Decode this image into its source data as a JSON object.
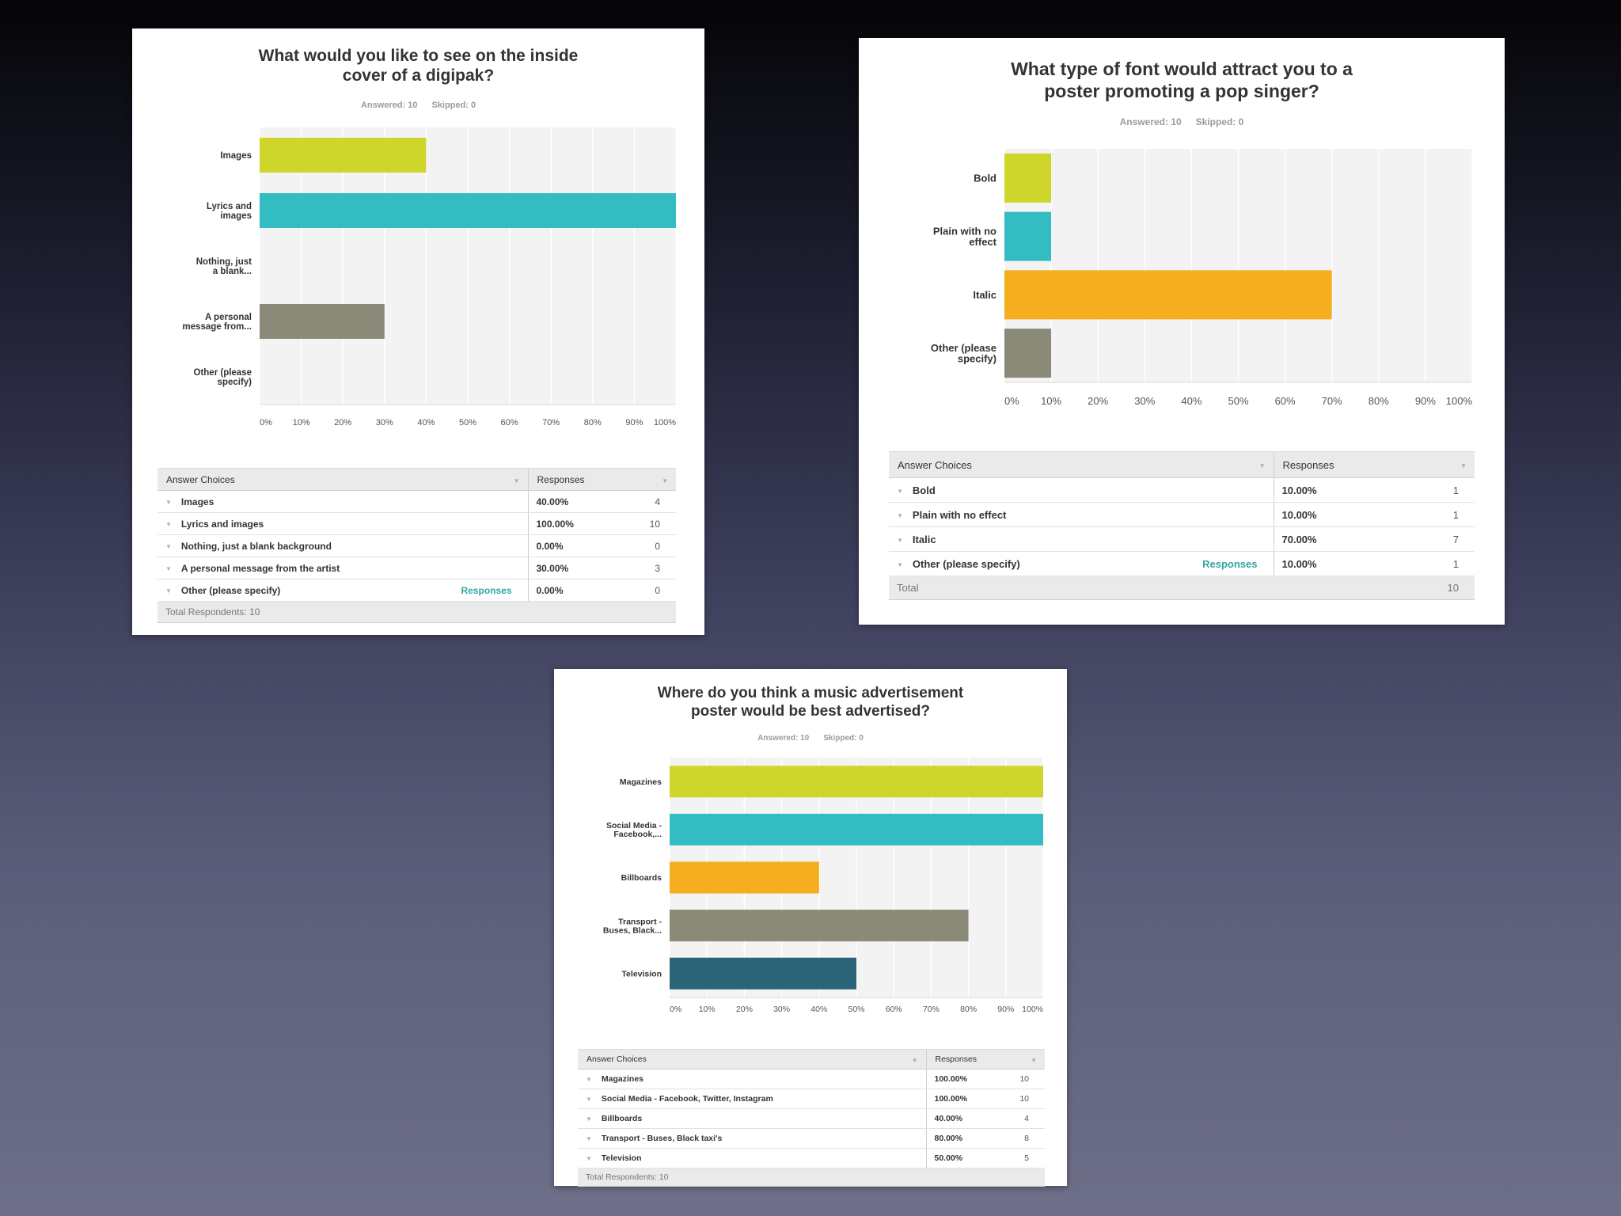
{
  "colors": {
    "yellow": "#cfd62b",
    "teal": "#34bcc3",
    "orange": "#f5ae1e",
    "gray": "#8b8a79",
    "navy": "#2b6478",
    "grid_bg": "#f3f3f3",
    "link": "#2ea8a4"
  },
  "icons": {
    "row_caret": "caret-down-icon",
    "sort_caret": "sort-caret-icon"
  },
  "glyphs": {
    "caret": "▼"
  },
  "surveys": [
    {
      "title_line1": "What would you like to see on the inside",
      "title_line2": "cover of a digipak?",
      "answered": "Answered: 10",
      "skipped": "Skipped: 0",
      "table": {
        "header_choices": "Answer Choices",
        "header_responses": "Responses",
        "rows": [
          {
            "choice": "Images",
            "pct": "40.00%",
            "count": "4",
            "link": ""
          },
          {
            "choice": "Lyrics and images",
            "pct": "100.00%",
            "count": "10",
            "link": ""
          },
          {
            "choice": "Nothing, just a blank background",
            "pct": "0.00%",
            "count": "0",
            "link": ""
          },
          {
            "choice": "A personal message from the artist",
            "pct": "30.00%",
            "count": "3",
            "link": ""
          },
          {
            "choice": "Other (please specify)",
            "pct": "0.00%",
            "count": "0",
            "link": "Responses"
          }
        ],
        "total_label": "Total Respondents: 10",
        "total_count": ""
      }
    },
    {
      "title_line1": "What type of font would attract you to a",
      "title_line2": "poster promoting a pop singer?",
      "answered": "Answered: 10",
      "skipped": "Skipped: 0",
      "table": {
        "header_choices": "Answer Choices",
        "header_responses": "Responses",
        "rows": [
          {
            "choice": "Bold",
            "pct": "10.00%",
            "count": "1",
            "link": ""
          },
          {
            "choice": "Plain with no effect",
            "pct": "10.00%",
            "count": "1",
            "link": ""
          },
          {
            "choice": "Italic",
            "pct": "70.00%",
            "count": "7",
            "link": ""
          },
          {
            "choice": "Other (please specify)",
            "pct": "10.00%",
            "count": "1",
            "link": "Responses"
          }
        ],
        "total_label": "Total",
        "total_count": "10"
      }
    },
    {
      "title_line1": "Where do you think a music advertisement",
      "title_line2": "poster would be best advertised?",
      "answered": "Answered: 10",
      "skipped": "Skipped: 0",
      "table": {
        "header_choices": "Answer Choices",
        "header_responses": "Responses",
        "rows": [
          {
            "choice": "Magazines",
            "pct": "100.00%",
            "count": "10",
            "link": ""
          },
          {
            "choice": "Social Media - Facebook, Twitter, Instagram",
            "pct": "100.00%",
            "count": "10",
            "link": ""
          },
          {
            "choice": "Billboards",
            "pct": "40.00%",
            "count": "4",
            "link": ""
          },
          {
            "choice": "Transport - Buses, Black taxi's",
            "pct": "80.00%",
            "count": "8",
            "link": ""
          },
          {
            "choice": "Television",
            "pct": "50.00%",
            "count": "5",
            "link": ""
          }
        ],
        "total_label": "Total Respondents: 10",
        "total_count": ""
      }
    }
  ],
  "chart_data": [
    {
      "type": "bar",
      "orientation": "horizontal",
      "title": "What would you like to see on the inside cover of a digipak?",
      "categories": [
        [
          "Images"
        ],
        [
          "Lyrics and",
          "images"
        ],
        [
          "Nothing, just",
          "a blank..."
        ],
        [
          "A personal",
          "message from..."
        ],
        [
          "Other (please",
          "specify)"
        ]
      ],
      "values": [
        40,
        100,
        0,
        30,
        0
      ],
      "bar_colors": [
        "#cfd62b",
        "#34bcc3",
        "#f5ae1e",
        "#8b8a79",
        "#2b6478"
      ],
      "xlim": [
        0,
        100
      ],
      "xticks": [
        "0%",
        "10%",
        "20%",
        "30%",
        "40%",
        "50%",
        "60%",
        "70%",
        "80%",
        "90%",
        "100%"
      ],
      "xlabel": "",
      "ylabel": "",
      "grid": true
    },
    {
      "type": "bar",
      "orientation": "horizontal",
      "title": "What type of font would attract you to a poster promoting a pop singer?",
      "categories": [
        [
          "Bold"
        ],
        [
          "Plain with no",
          "effect"
        ],
        [
          "Italic"
        ],
        [
          "Other (please",
          "specify)"
        ]
      ],
      "values": [
        10,
        10,
        70,
        10
      ],
      "bar_colors": [
        "#cfd62b",
        "#34bcc3",
        "#f5ae1e",
        "#8b8a79"
      ],
      "xlim": [
        0,
        100
      ],
      "xticks": [
        "0%",
        "10%",
        "20%",
        "30%",
        "40%",
        "50%",
        "60%",
        "70%",
        "80%",
        "90%",
        "100%"
      ],
      "xlabel": "",
      "ylabel": "",
      "grid": true
    },
    {
      "type": "bar",
      "orientation": "horizontal",
      "title": "Where do you think a music advertisement poster would be best advertised?",
      "categories": [
        [
          "Magazines"
        ],
        [
          "Social Media -",
          "Facebook,..."
        ],
        [
          "Billboards"
        ],
        [
          "Transport -",
          "Buses, Black..."
        ],
        [
          "Television"
        ]
      ],
      "values": [
        100,
        100,
        40,
        80,
        50
      ],
      "bar_colors": [
        "#cfd62b",
        "#34bcc3",
        "#f5ae1e",
        "#8b8a79",
        "#2b6478"
      ],
      "xlim": [
        0,
        100
      ],
      "xticks": [
        "0%",
        "10%",
        "20%",
        "30%",
        "40%",
        "50%",
        "60%",
        "70%",
        "80%",
        "90%",
        "100%"
      ],
      "xlabel": "",
      "ylabel": "",
      "grid": true
    }
  ]
}
